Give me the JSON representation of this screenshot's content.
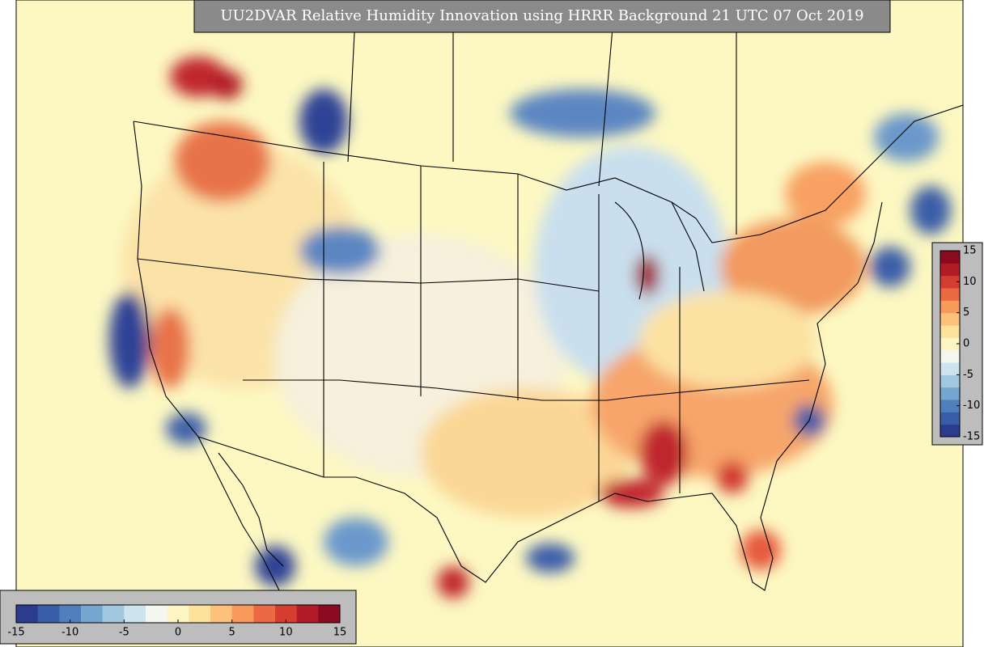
{
  "header": {
    "title": "UU2DVAR Relative Humidity Innovation using HRRR Background 21 UTC 07 Oct 2019"
  },
  "colorbars": [
    {
      "orientation": "horizontal",
      "lim": [
        -15,
        15
      ],
      "ticks": [
        -15,
        -10,
        -5,
        0,
        5,
        10,
        15
      ]
    },
    {
      "orientation": "vertical",
      "lim": [
        -15,
        15
      ],
      "ticks": [
        15,
        10,
        5,
        0,
        -5,
        -10,
        -15
      ]
    }
  ],
  "palette": [
    "#2b3c8f",
    "#3a5da8",
    "#4f7fbd",
    "#74a6cf",
    "#a1c8e0",
    "#cde4ee",
    "#f4f6f0",
    "#fdf6c4",
    "#fde29c",
    "#fcc27a",
    "#f89a5a",
    "#ec6a43",
    "#d43d2f",
    "#b01b26",
    "#8c0a20"
  ]
}
